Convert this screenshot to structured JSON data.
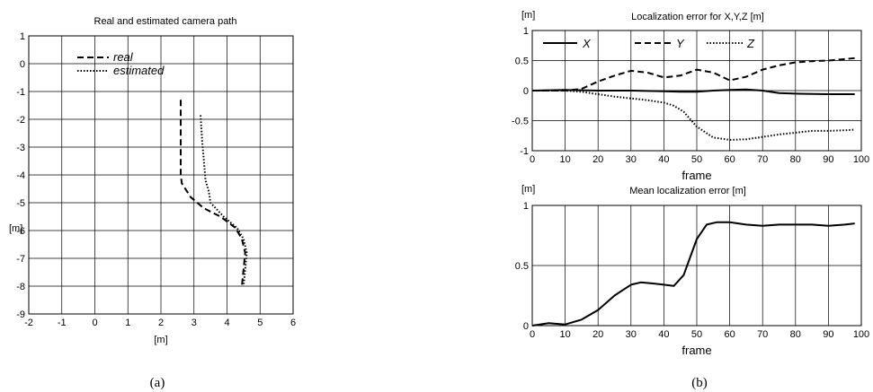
{
  "chart_data": [
    {
      "type": "line",
      "title": "Real and estimated camera path",
      "xlabel": "[m]",
      "ylabel": "[m]",
      "xlim": [
        -2,
        6
      ],
      "ylim": [
        -9,
        1
      ],
      "x_ticks": [
        "-2",
        "-1",
        "0",
        "1",
        "2",
        "3",
        "4",
        "5",
        "6"
      ],
      "y_ticks": [
        "1",
        "0",
        "-1",
        "-2",
        "-3",
        "-4",
        "-5",
        "-6",
        "-7",
        "-8",
        "-9"
      ],
      "grid": true,
      "legend": "top-left",
      "series": [
        {
          "name": "real",
          "style": "dashed",
          "x": [
            2.6,
            2.6,
            2.6,
            2.63,
            2.9,
            3.3,
            3.8,
            4.25,
            4.45,
            4.55,
            4.5,
            4.45
          ],
          "y": [
            -1.3,
            -2.5,
            -4.0,
            -4.3,
            -4.8,
            -5.2,
            -5.5,
            -5.9,
            -6.3,
            -6.8,
            -7.4,
            -8.0
          ]
        },
        {
          "name": "estimated",
          "style": "dotted",
          "x": [
            3.2,
            3.25,
            3.3,
            3.35,
            3.45,
            3.5,
            3.9,
            4.3,
            4.5,
            4.6,
            4.55,
            4.5
          ],
          "y": [
            -1.85,
            -2.8,
            -3.5,
            -4.2,
            -4.6,
            -5.0,
            -5.5,
            -5.9,
            -6.3,
            -6.8,
            -7.4,
            -8.0
          ]
        }
      ]
    },
    {
      "type": "line",
      "title": "Localization error for X,Y,Z [m]",
      "xlabel": "frame",
      "ylabel": "[m]",
      "xlim": [
        0,
        100
      ],
      "ylim": [
        -1,
        1
      ],
      "x_ticks": [
        "0",
        "10",
        "20",
        "30",
        "40",
        "50",
        "60",
        "70",
        "80",
        "90",
        "100"
      ],
      "y_ticks": [
        "1",
        "0.5",
        "0",
        "-0.5",
        "-1"
      ],
      "grid": true,
      "legend": "top",
      "series": [
        {
          "name": "X",
          "style": "solid",
          "x": [
            0,
            10,
            20,
            30,
            40,
            45,
            50,
            55,
            60,
            65,
            70,
            75,
            80,
            90,
            98
          ],
          "y": [
            0,
            0.01,
            0.0,
            0.0,
            -0.01,
            -0.02,
            -0.02,
            0.0,
            0.01,
            0.02,
            0.0,
            -0.04,
            -0.05,
            -0.06,
            -0.06
          ]
        },
        {
          "name": "Y",
          "style": "dashed",
          "x": [
            0,
            10,
            15,
            20,
            25,
            30,
            35,
            40,
            45,
            50,
            55,
            60,
            65,
            70,
            75,
            80,
            85,
            90,
            98
          ],
          "y": [
            0,
            0.0,
            0.03,
            0.15,
            0.25,
            0.33,
            0.3,
            0.22,
            0.25,
            0.35,
            0.3,
            0.17,
            0.23,
            0.35,
            0.42,
            0.47,
            0.49,
            0.5,
            0.54
          ]
        },
        {
          "name": "Z",
          "style": "dotted",
          "x": [
            0,
            10,
            15,
            20,
            25,
            30,
            35,
            40,
            43,
            46,
            50,
            55,
            60,
            65,
            70,
            75,
            80,
            85,
            90,
            95,
            98
          ],
          "y": [
            0,
            0.0,
            -0.02,
            -0.06,
            -0.1,
            -0.13,
            -0.16,
            -0.2,
            -0.25,
            -0.35,
            -0.6,
            -0.78,
            -0.82,
            -0.81,
            -0.77,
            -0.73,
            -0.7,
            -0.67,
            -0.67,
            -0.66,
            -0.65
          ]
        }
      ]
    },
    {
      "type": "line",
      "title": "Mean localization error [m]",
      "xlabel": "frame",
      "ylabel": "[m]",
      "xlim": [
        0,
        100
      ],
      "ylim": [
        0,
        1
      ],
      "x_ticks": [
        "0",
        "10",
        "20",
        "30",
        "40",
        "50",
        "60",
        "70",
        "80",
        "90",
        "100"
      ],
      "y_ticks": [
        "1",
        "0.5",
        "0"
      ],
      "grid": true,
      "series": [
        {
          "name": "",
          "style": "solid",
          "x": [
            0,
            5,
            10,
            15,
            20,
            25,
            30,
            33,
            37,
            40,
            43,
            46,
            50,
            53,
            56,
            60,
            65,
            70,
            75,
            80,
            85,
            90,
            95,
            98
          ],
          "y": [
            0,
            0.02,
            0.01,
            0.05,
            0.13,
            0.25,
            0.34,
            0.36,
            0.35,
            0.34,
            0.33,
            0.42,
            0.72,
            0.84,
            0.86,
            0.86,
            0.84,
            0.83,
            0.84,
            0.84,
            0.84,
            0.83,
            0.84,
            0.85
          ]
        }
      ]
    }
  ],
  "captions": {
    "left": "(a)",
    "right": "(b)"
  }
}
